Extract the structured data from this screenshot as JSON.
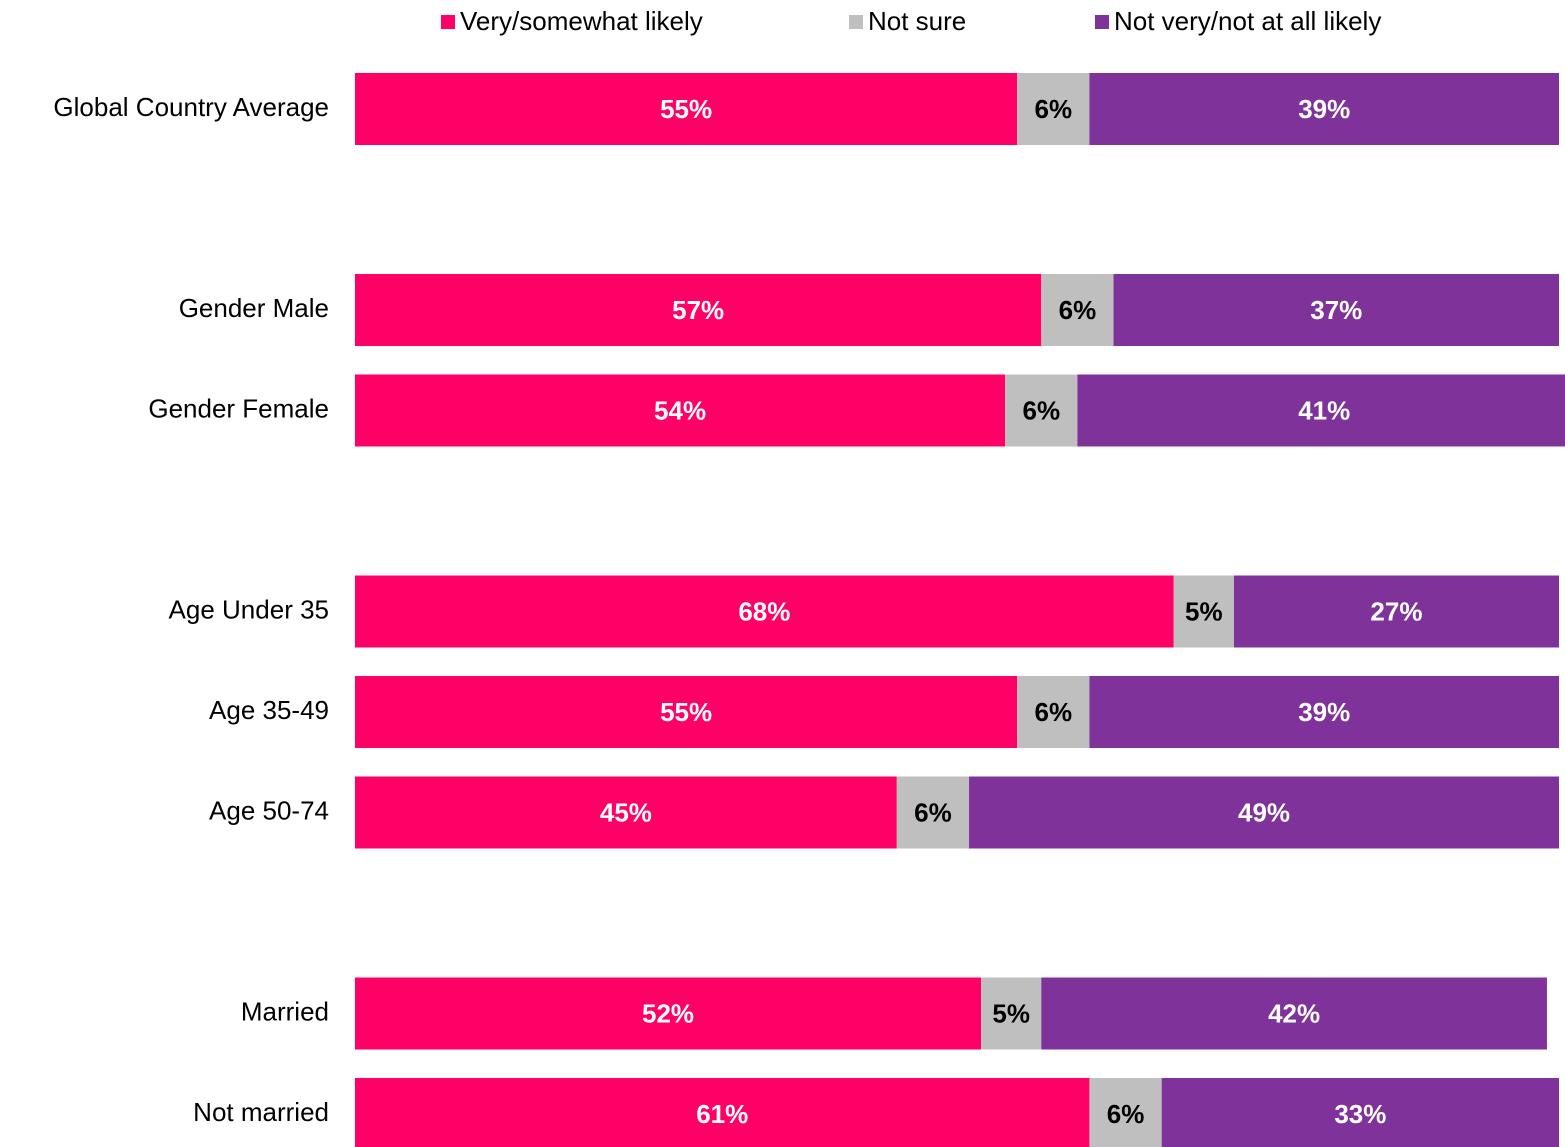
{
  "chart_data": {
    "type": "stacked-bar-horizontal",
    "categories": [
      "Global Country Average",
      null,
      "Gender Male",
      "Gender Female",
      null,
      "Age Under 35",
      "Age 35-49",
      "Age 50-74",
      null,
      "Married",
      "Not married"
    ],
    "series": [
      {
        "name": "Very/somewhat likely",
        "color": "#ff0066",
        "label_color": "#ffffff",
        "values": [
          55,
          null,
          57,
          54,
          null,
          68,
          55,
          45,
          null,
          52,
          61
        ],
        "value_labels": [
          "55%",
          null,
          "57%",
          "54%",
          null,
          "68%",
          "55%",
          "45%",
          null,
          "52%",
          "61%"
        ]
      },
      {
        "name": "Not sure",
        "color": "#bfbfbf",
        "label_color": "#000000",
        "values": [
          6,
          null,
          6,
          6,
          null,
          5,
          6,
          6,
          null,
          5,
          6
        ],
        "value_labels": [
          "6%",
          null,
          "6%",
          "6%",
          null,
          "5%",
          "6%",
          "6%",
          null,
          "5%",
          "6%"
        ]
      },
      {
        "name": "Not very/not at all likely",
        "color": "#7f3299",
        "label_color": "#ffffff",
        "values": [
          39,
          null,
          37,
          41,
          null,
          27,
          39,
          49,
          null,
          42,
          33
        ],
        "value_labels": [
          "39%",
          null,
          "37%",
          "41%",
          null,
          "27%",
          "39%",
          "49%",
          null,
          "42%",
          "33%"
        ]
      }
    ],
    "xlim": [
      0,
      100
    ],
    "legend": "top"
  }
}
